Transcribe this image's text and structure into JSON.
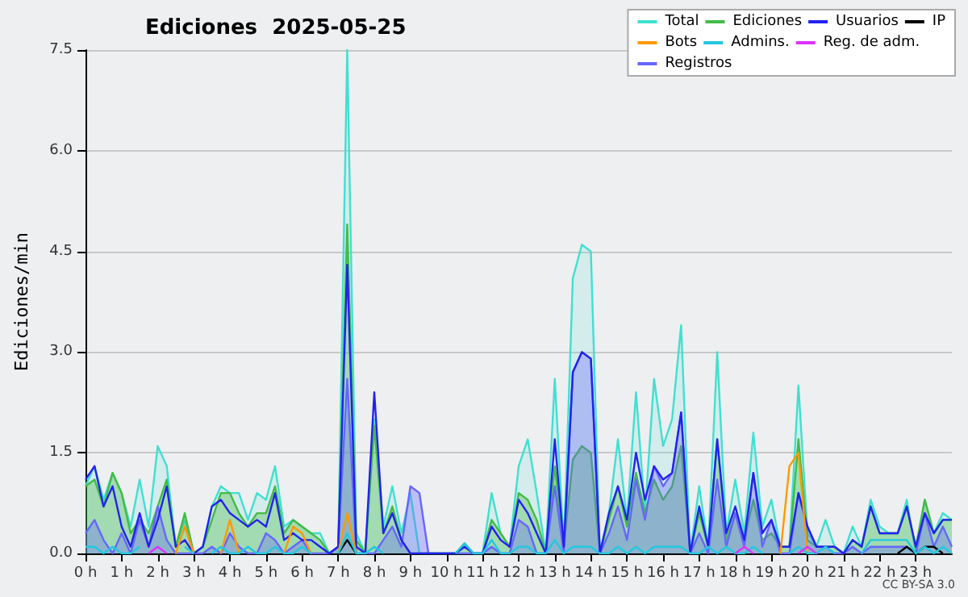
{
  "chart_data": {
    "type": "line",
    "title": "Ediciones  2025-05-25",
    "ylabel": "Ediciones/min",
    "annotations": [
      "CC BY-SA 3.0"
    ],
    "x": [
      0,
      0.25,
      0.5,
      0.75,
      1,
      1.25,
      1.5,
      1.75,
      2,
      2.25,
      2.5,
      2.75,
      3,
      3.25,
      3.5,
      3.75,
      4,
      4.25,
      4.5,
      4.75,
      5,
      5.25,
      5.5,
      5.75,
      6,
      6.25,
      6.5,
      6.75,
      7,
      7.25,
      7.5,
      7.75,
      8,
      8.25,
      8.5,
      8.75,
      9,
      9.25,
      9.5,
      9.75,
      10,
      10.25,
      10.5,
      10.75,
      11,
      11.25,
      11.5,
      11.75,
      12,
      12.25,
      12.5,
      12.75,
      13,
      13.25,
      13.5,
      13.75,
      14,
      14.25,
      14.5,
      14.75,
      15,
      15.25,
      15.5,
      15.75,
      16,
      16.25,
      16.5,
      16.75,
      17,
      17.25,
      17.5,
      17.75,
      18,
      18.25,
      18.5,
      18.75,
      19,
      19.25,
      19.5,
      19.75,
      20,
      20.25,
      20.5,
      20.75,
      21,
      21.25,
      21.5,
      21.75,
      22,
      22.25,
      22.5,
      22.75,
      23,
      23.25,
      23.5,
      23.75,
      24
    ],
    "series": [
      {
        "name": "Total",
        "type": "area",
        "color": "#40e0d0",
        "values": [
          1.0,
          1.3,
          0.8,
          1.2,
          0.9,
          0.4,
          1.1,
          0.4,
          1.6,
          1.3,
          0.1,
          0.5,
          0.0,
          0.1,
          0.7,
          1.0,
          0.9,
          0.9,
          0.5,
          0.9,
          0.8,
          1.3,
          0.4,
          0.5,
          0.4,
          0.3,
          0.3,
          0.0,
          0.1,
          7.5,
          0.3,
          0.0,
          2.0,
          0.4,
          1.0,
          0.3,
          0.9,
          0.0,
          0,
          0,
          0,
          0,
          0.15,
          0,
          0,
          0.9,
          0.3,
          0.1,
          1.3,
          1.7,
          0.9,
          0.0,
          2.6,
          0.1,
          4.1,
          4.6,
          4.5,
          0.0,
          0.6,
          1.7,
          0.5,
          2.4,
          0.6,
          2.6,
          1.6,
          2.0,
          3.4,
          0.0,
          1.0,
          0.1,
          3.0,
          0.3,
          1.1,
          0.3,
          1.8,
          0.4,
          0.8,
          0.1,
          0.1,
          2.5,
          0.3,
          0.1,
          0.5,
          0.1,
          0.0,
          0.4,
          0.1,
          0.8,
          0.4,
          0.3,
          0.3,
          0.8,
          0.0,
          0.8,
          0.3,
          0.6,
          0.5
        ]
      },
      {
        "name": "Ediciones",
        "type": "area",
        "color": "#44bb44",
        "values": [
          1.0,
          1.1,
          0.7,
          1.2,
          0.9,
          0.3,
          0.5,
          0.3,
          0.7,
          1.1,
          0.1,
          0.6,
          0.0,
          0.1,
          0.5,
          0.9,
          0.9,
          0.6,
          0.4,
          0.6,
          0.6,
          1.0,
          0.3,
          0.5,
          0.4,
          0.3,
          0.2,
          0.0,
          0.1,
          4.9,
          0.2,
          0.0,
          1.9,
          0.3,
          0.7,
          0.2,
          0,
          0,
          0,
          0,
          0,
          0,
          0.15,
          0,
          0,
          0.5,
          0.3,
          0.1,
          0.9,
          0.8,
          0.5,
          0.0,
          1.3,
          0.1,
          1.4,
          1.6,
          1.5,
          0.0,
          0.5,
          1.0,
          0.4,
          1.2,
          0.6,
          1.1,
          0.8,
          1.0,
          1.6,
          0.0,
          0.6,
          0.1,
          1.7,
          0.2,
          0.6,
          0.2,
          0.8,
          0.2,
          0.3,
          0.1,
          0.1,
          1.7,
          0.2,
          0.1,
          0.1,
          0.1,
          0.0,
          0.2,
          0.1,
          0.7,
          0.3,
          0.3,
          0.3,
          0.7,
          0.1,
          0.8,
          0.3,
          0.5,
          0.5
        ]
      },
      {
        "name": "Usuarios",
        "type": "line",
        "color": "#2222ee",
        "values": [
          1.1,
          1.3,
          0.7,
          1.0,
          0.4,
          0.1,
          0.6,
          0.1,
          0.5,
          1.0,
          0.1,
          0.2,
          0.0,
          0.1,
          0.7,
          0.8,
          0.6,
          0.5,
          0.4,
          0.5,
          0.4,
          0.9,
          0.2,
          0.3,
          0.2,
          0.2,
          0.1,
          0.0,
          0.1,
          4.3,
          0.1,
          0.0,
          2.4,
          0.3,
          0.6,
          0.2,
          0,
          0,
          0,
          0,
          0,
          0,
          0.1,
          0,
          0,
          0.4,
          0.2,
          0.1,
          0.8,
          0.6,
          0.3,
          0.0,
          1.7,
          0.1,
          2.7,
          3.0,
          2.9,
          0.0,
          0.6,
          1.0,
          0.5,
          1.5,
          0.8,
          1.3,
          1.1,
          1.2,
          2.1,
          0.0,
          0.7,
          0.1,
          1.7,
          0.3,
          0.7,
          0.2,
          1.2,
          0.3,
          0.5,
          0.1,
          0.1,
          0.9,
          0.4,
          0.1,
          0.1,
          0.1,
          0.0,
          0.2,
          0.1,
          0.7,
          0.3,
          0.3,
          0.3,
          0.7,
          0.1,
          0.6,
          0.3,
          0.5,
          0.5
        ]
      },
      {
        "name": "IP",
        "type": "line",
        "color": "#000000",
        "values": [
          null,
          null,
          null,
          null,
          null,
          null,
          null,
          null,
          null,
          null,
          null,
          null,
          null,
          null,
          null,
          null,
          null,
          null,
          null,
          null,
          null,
          null,
          null,
          null,
          null,
          null,
          null,
          null,
          0,
          0.2,
          0,
          null,
          null,
          null,
          null,
          null,
          null,
          null,
          null,
          null,
          null,
          null,
          null,
          null,
          null,
          null,
          null,
          null,
          null,
          null,
          null,
          null,
          null,
          null,
          null,
          null,
          null,
          null,
          null,
          null,
          null,
          null,
          null,
          null,
          null,
          null,
          null,
          null,
          null,
          null,
          null,
          null,
          null,
          null,
          null,
          null,
          null,
          null,
          null,
          null,
          null,
          null,
          null,
          null,
          null,
          null,
          null,
          null,
          null,
          null,
          0,
          0.1,
          0,
          0.1,
          0.1,
          0,
          null
        ]
      },
      {
        "name": "Bots",
        "type": "line",
        "color": "#ff9900",
        "values": [
          null,
          null,
          null,
          null,
          null,
          null,
          null,
          null,
          null,
          null,
          0,
          0.4,
          0,
          null,
          null,
          0,
          0.5,
          0,
          null,
          null,
          null,
          null,
          0,
          0.4,
          0.3,
          0,
          null,
          null,
          0,
          0.6,
          0,
          null,
          null,
          null,
          null,
          null,
          null,
          null,
          null,
          null,
          null,
          null,
          null,
          null,
          null,
          null,
          null,
          null,
          null,
          null,
          null,
          null,
          null,
          null,
          null,
          null,
          null,
          null,
          null,
          null,
          null,
          null,
          null,
          null,
          null,
          null,
          null,
          null,
          null,
          null,
          null,
          null,
          null,
          null,
          null,
          null,
          null,
          0,
          1.3,
          1.5,
          0,
          null,
          null,
          null,
          null,
          null,
          null,
          null,
          null,
          null,
          null,
          null,
          null,
          null,
          null,
          null,
          null
        ]
      },
      {
        "name": "Admins.",
        "type": "line",
        "color": "#22c8e0",
        "values": [
          0.1,
          0.1,
          0,
          0.1,
          0,
          0,
          0.1,
          null,
          null,
          null,
          null,
          0.1,
          0,
          null,
          0,
          0.1,
          0,
          0,
          0.1,
          0,
          0,
          0.1,
          0,
          0,
          0.1,
          0,
          null,
          null,
          0,
          0.3,
          0,
          0,
          0.1,
          0,
          null,
          null,
          null,
          null,
          null,
          null,
          null,
          0,
          0.15,
          0,
          0,
          0.2,
          0,
          0,
          0.1,
          0.1,
          0,
          0,
          0.2,
          0,
          0.1,
          0.1,
          0.1,
          0,
          0,
          0.1,
          0,
          0.1,
          0,
          0.1,
          0.1,
          0.1,
          0.1,
          0,
          0,
          0.1,
          0,
          0.1,
          0,
          0,
          0.1,
          0,
          null,
          null,
          0,
          0.1,
          0,
          0,
          0.1,
          0,
          null,
          null,
          0,
          0.2,
          0.2,
          0.2,
          0.2,
          0.2,
          0,
          0.1,
          0,
          0.1,
          0
        ]
      },
      {
        "name": "Reg. de adm.",
        "type": "line",
        "color": "#dd33ff",
        "values": [
          null,
          null,
          null,
          null,
          null,
          null,
          null,
          0,
          0.1,
          0,
          null,
          null,
          null,
          null,
          null,
          null,
          null,
          null,
          null,
          null,
          null,
          null,
          null,
          null,
          null,
          null,
          null,
          null,
          null,
          null,
          null,
          null,
          null,
          null,
          null,
          null,
          null,
          null,
          null,
          null,
          null,
          null,
          null,
          null,
          null,
          null,
          null,
          null,
          null,
          null,
          null,
          null,
          null,
          null,
          null,
          null,
          null,
          null,
          null,
          null,
          null,
          null,
          null,
          null,
          null,
          null,
          null,
          null,
          null,
          null,
          null,
          null,
          0,
          0.1,
          0,
          null,
          null,
          null,
          null,
          0,
          0.1,
          0,
          null,
          null,
          null,
          null,
          null,
          null,
          null,
          null,
          null,
          null,
          null,
          null,
          null,
          null,
          null
        ]
      },
      {
        "name": "Registros",
        "type": "area",
        "color": "#6666ff",
        "values": [
          0.3,
          0.5,
          0.2,
          0,
          0.3,
          0,
          0.5,
          0.1,
          0.7,
          0.2,
          0,
          0,
          0,
          0,
          0.1,
          0,
          0.3,
          0.1,
          0,
          0,
          0.3,
          0.2,
          0,
          0.1,
          0.2,
          0,
          0,
          0,
          0.1,
          2.6,
          0,
          0,
          0,
          0.2,
          0.4,
          0.1,
          1.0,
          0.9,
          0,
          0,
          0,
          0,
          0,
          0,
          0,
          0.1,
          0,
          0,
          0.5,
          0.4,
          0,
          0,
          1.0,
          0,
          2.7,
          3.0,
          2.9,
          0,
          0.3,
          0.7,
          0.2,
          1.1,
          0.5,
          1.3,
          1.0,
          1.2,
          2.1,
          0,
          0.3,
          0,
          1.1,
          0.1,
          0.6,
          0.1,
          1.2,
          0.1,
          0.5,
          0,
          0,
          0.9,
          0.4,
          0.1,
          0.1,
          0,
          0,
          0.1,
          0,
          0.1,
          0.1,
          0.1,
          0.1,
          0.1,
          0,
          0.6,
          0.1,
          0.4,
          0.1
        ]
      }
    ],
    "xlim": [
      0,
      24
    ],
    "xticks": [
      {
        "value": 0,
        "label": "0 h"
      },
      {
        "value": 1,
        "label": "1 h"
      },
      {
        "value": 2,
        "label": "2 h"
      },
      {
        "value": 3,
        "label": "3 h"
      },
      {
        "value": 4,
        "label": "4 h"
      },
      {
        "value": 5,
        "label": "5 h"
      },
      {
        "value": 6,
        "label": "6 h"
      },
      {
        "value": 7,
        "label": "7 h"
      },
      {
        "value": 8,
        "label": "8 h"
      },
      {
        "value": 9,
        "label": "9 h"
      },
      {
        "value": 10,
        "label": "10 h"
      },
      {
        "value": 11,
        "label": "11 h"
      },
      {
        "value": 12,
        "label": "12 h"
      },
      {
        "value": 13,
        "label": "13 h"
      },
      {
        "value": 14,
        "label": "14 h"
      },
      {
        "value": 15,
        "label": "15 h"
      },
      {
        "value": 16,
        "label": "16 h"
      },
      {
        "value": 17,
        "label": "17 h"
      },
      {
        "value": 18,
        "label": "18 h"
      },
      {
        "value": 19,
        "label": "19 h"
      },
      {
        "value": 20,
        "label": "20 h"
      },
      {
        "value": 21,
        "label": "21 h"
      },
      {
        "value": 22,
        "label": "22 h"
      },
      {
        "value": 23,
        "label": "23 h"
      }
    ],
    "ylim": [
      0,
      7.5
    ],
    "yticks": [
      {
        "value": 0,
        "label": "0.0"
      },
      {
        "value": 1.5,
        "label": "1.5"
      },
      {
        "value": 3,
        "label": "3.0"
      },
      {
        "value": 4.5,
        "label": "4.5"
      },
      {
        "value": 6,
        "label": "6.0"
      },
      {
        "value": 7.5,
        "label": "7.5"
      }
    ],
    "grid": "y",
    "legend": "top right",
    "marker": "none",
    "line_style": "solid"
  }
}
